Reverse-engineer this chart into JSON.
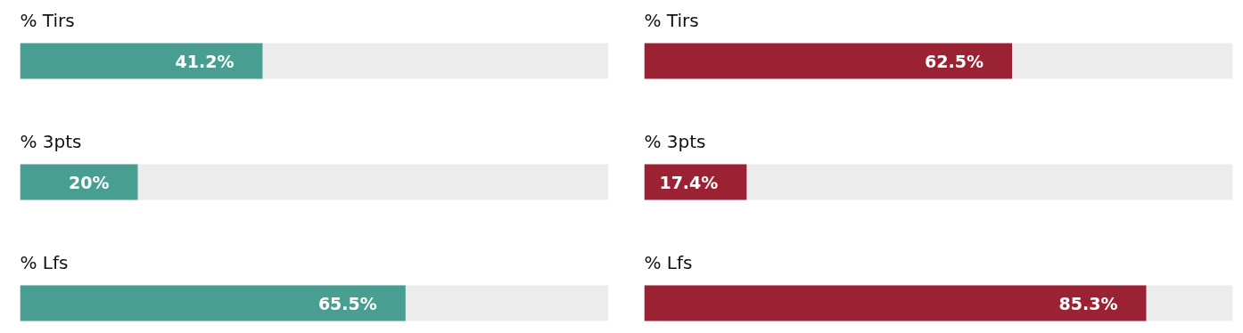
{
  "chart_data": [
    {
      "type": "bar",
      "orientation": "horizontal",
      "categories": [
        "% Tirs",
        "% 3pts",
        "% Lfs"
      ],
      "values": [
        41.2,
        20,
        65.5
      ],
      "value_labels": [
        "41.2%",
        "20%",
        "65.5%"
      ],
      "color": "#489e90",
      "xlim": [
        0,
        100
      ],
      "tick_labels": false
    },
    {
      "type": "bar",
      "orientation": "horizontal",
      "categories": [
        "% Tirs",
        "% 3pts",
        "% Lfs"
      ],
      "values": [
        62.5,
        17.4,
        85.3
      ],
      "value_labels": [
        "62.5%",
        "17.4%",
        "85.3%"
      ],
      "color": "#9b2232",
      "xlim": [
        0,
        100
      ],
      "tick_labels": false
    }
  ]
}
